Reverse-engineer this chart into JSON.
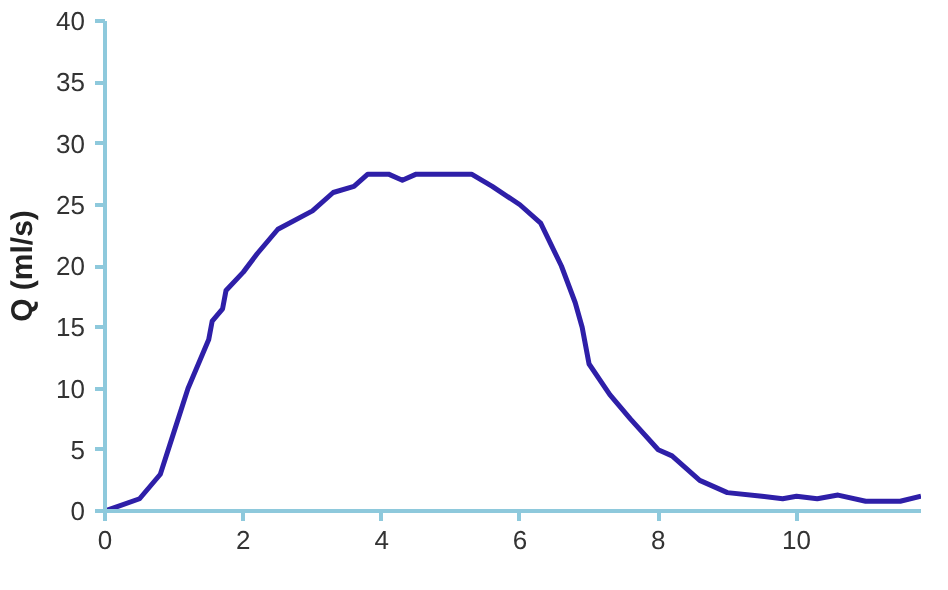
{
  "chart_data": {
    "type": "line",
    "ylabel": "Q (ml/s)",
    "xlim": [
      0,
      11.8
    ],
    "ylim": [
      0,
      40
    ],
    "xticks": [
      0,
      2,
      4,
      6,
      8,
      10
    ],
    "yticks": [
      0,
      5,
      10,
      15,
      20,
      25,
      30,
      35,
      40
    ],
    "grid": false,
    "marker": "none",
    "line_style": "solid",
    "series": [
      {
        "color": "#2e1fa8",
        "x": [
          0,
          0.5,
          0.8,
          1,
          1.2,
          1.5,
          1.55,
          1.7,
          1.75,
          2,
          2.2,
          2.5,
          3,
          3.3,
          3.6,
          3.8,
          4.1,
          4.3,
          4.5,
          5,
          5.3,
          5.6,
          6,
          6.3,
          6.6,
          6.8,
          6.9,
          7,
          7.3,
          7.6,
          8,
          8.2,
          8.6,
          9,
          9.5,
          9.8,
          10,
          10.3,
          10.6,
          11,
          11.5,
          11.8
        ],
        "values": [
          0,
          1,
          3,
          6.5,
          10,
          14,
          15.5,
          16.5,
          18,
          19.5,
          21,
          23,
          24.5,
          26,
          26.5,
          27.5,
          27.5,
          27,
          27.5,
          27.5,
          27.5,
          26.5,
          25,
          23.5,
          20,
          17,
          15,
          12,
          9.5,
          7.5,
          5,
          4.5,
          2.5,
          1.5,
          1.2,
          1,
          1.2,
          1,
          1.3,
          0.8,
          0.8,
          1.2
        ]
      }
    ]
  }
}
